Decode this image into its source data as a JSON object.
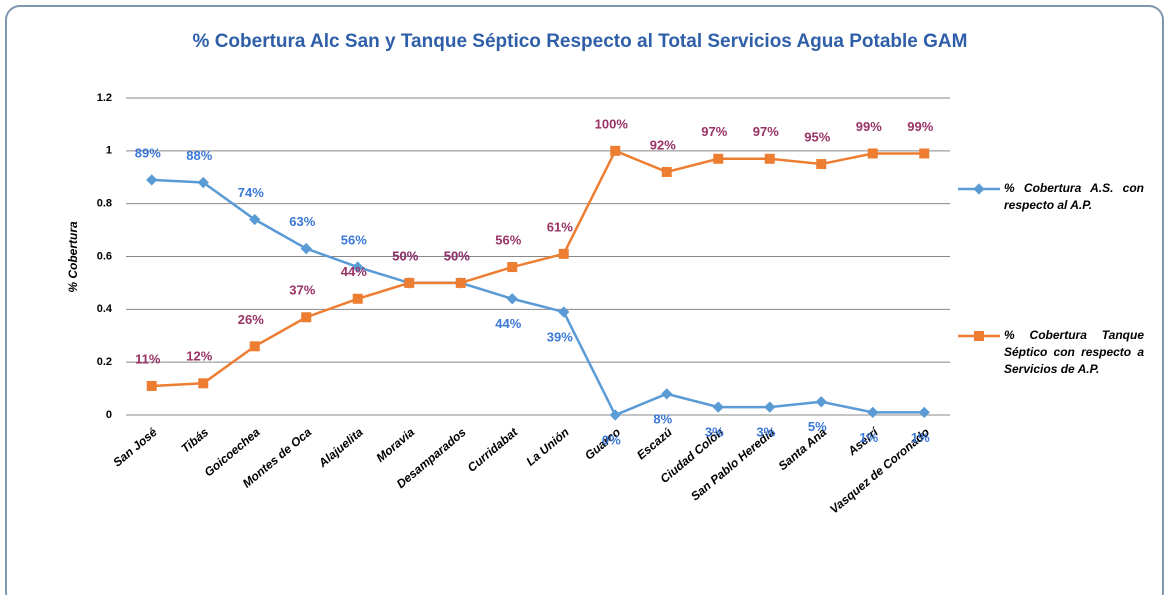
{
  "chart_data": {
    "type": "line",
    "title": "% Cobertura Alc San y Tanque Séptico Respecto al Total Servicios Agua Potable GAM",
    "y_label": "% Cobertura",
    "categories": [
      "San José",
      "Tibás",
      "Goicoechea",
      "Montes de Oca",
      "Alajuelita",
      "Moravia",
      "Desamparados",
      "Curridabat",
      "La Unión",
      "Guarco",
      "Escazú",
      "Ciudad Colón",
      "San Pablo Heredia",
      "Santa Ana",
      "Aserrí",
      "Vasquez de Coronado"
    ],
    "series": [
      {
        "name": "% Cobertura A.S. con respecto al A.P.",
        "color": "#5b9bd5",
        "label_color": "#3b78d8",
        "values": [
          0.89,
          0.88,
          0.74,
          0.63,
          0.56,
          0.5,
          0.5,
          0.44,
          0.39,
          0,
          0.08,
          0.03,
          0.03,
          0.05,
          0.01,
          0.01
        ],
        "value_labels": [
          "89%",
          "88%",
          "74%",
          "63%",
          "56%",
          "50%",
          "50%",
          "44%",
          "39%",
          "0%",
          "8%",
          "3%",
          "3%",
          "5%",
          "1%",
          "1%"
        ]
      },
      {
        "name": "% Cobertura Tanque Séptico con respecto a Servicios de A.P.",
        "color": "#ed7d31",
        "label_color": "#993366",
        "values": [
          0.11,
          0.12,
          0.26,
          0.37,
          0.44,
          0.5,
          0.5,
          0.56,
          0.61,
          1,
          0.92,
          0.97,
          0.97,
          0.95,
          0.99,
          0.99
        ],
        "value_labels": [
          "11%",
          "12%",
          "26%",
          "37%",
          "44%",
          "50%",
          "50%",
          "56%",
          "61%",
          "100%",
          "92%",
          "97%",
          "97%",
          "95%",
          "99%",
          "99%"
        ]
      }
    ],
    "ylim": [
      0,
      1.2
    ],
    "yticks": [
      0,
      0.2,
      0.4,
      0.6,
      0.8,
      1,
      1.2
    ],
    "grid": true,
    "legend": "right"
  }
}
